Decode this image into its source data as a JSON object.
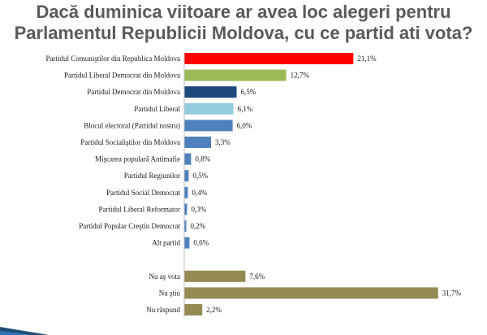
{
  "title": {
    "line1": "Dacă duminica viitoare ar avea loc alegeri pentru",
    "line2": "Parlamentul Republicii Moldova, cu ce partid ati vota?"
  },
  "chart_data": {
    "type": "bar",
    "orientation": "horizontal",
    "title": "Dacă duminica viitoare ar avea loc alegeri pentru Parlamentul Republicii Moldova, cu ce partid ati vota?",
    "xlabel": "",
    "ylabel": "",
    "xlim": [
      0,
      35
    ],
    "grid": false,
    "value_suffix": "%",
    "categories": [
      "Partidul Comuniştilor din Republica Moldova",
      "Partidul Liberal Democrat din Moldova",
      "Partidul Democrat din Moldova",
      "Partidul Liberal",
      "Blocul electoral (Partidul nostru)",
      "Partidul Socialiştilor din Moldova",
      "Mişcarea populară Antimafie",
      "Partidul Regiunilor",
      "Partidul Social Democrat",
      "Partidul Liberal Reformator",
      "Partidul Popular Creştin Democrat",
      "Alt partid",
      "",
      "Nu aş vota",
      "Nu ştiu",
      "Nu răspund"
    ],
    "values": [
      21.1,
      12.7,
      6.5,
      6.1,
      6.0,
      3.3,
      0.8,
      0.5,
      0.4,
      0.3,
      0.2,
      0.6,
      null,
      7.6,
      31.7,
      2.2
    ],
    "value_labels": [
      "21,1%",
      "12,7%",
      "6,5%",
      "6,1%",
      "6,0%",
      "3,3%",
      "0,8%",
      "0,5%",
      "0,4%",
      "0,3%",
      "0,2%",
      "0,6%",
      "",
      "7,6%",
      "31,7%",
      "2,2%"
    ],
    "colors": [
      "#ff0000",
      "#9bbb59",
      "#1f497d",
      "#93cddd",
      "#4f81bd",
      "#4f81bd",
      "#4f81bd",
      "#4f81bd",
      "#4f81bd",
      "#4f81bd",
      "#4f81bd",
      "#4f81bd",
      "",
      "#948a54",
      "#948a54",
      "#948a54"
    ]
  }
}
